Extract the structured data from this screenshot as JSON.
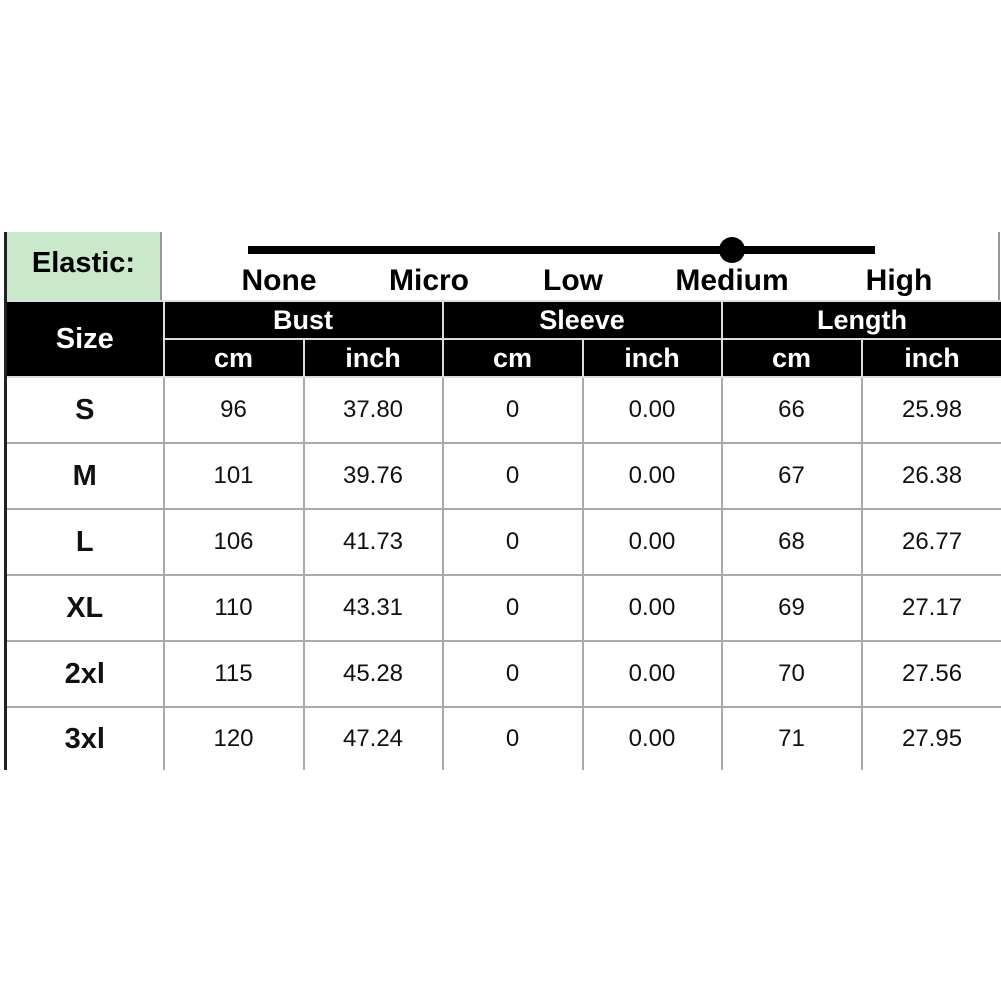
{
  "elastic": {
    "label": "Elastic:",
    "levels": [
      "None",
      "Micro",
      "Low",
      "Medium",
      "High"
    ],
    "selected": "Medium"
  },
  "header": {
    "size": "Size",
    "groups": [
      "Bust",
      "Sleeve",
      "Length"
    ],
    "units": [
      "cm",
      "inch",
      "cm",
      "inch",
      "cm",
      "inch"
    ]
  },
  "rows": [
    [
      "S",
      "96",
      "37.80",
      "0",
      "0.00",
      "66",
      "25.98"
    ],
    [
      "M",
      "101",
      "39.76",
      "0",
      "0.00",
      "67",
      "26.38"
    ],
    [
      "L",
      "106",
      "41.73",
      "0",
      "0.00",
      "68",
      "26.77"
    ],
    [
      "XL",
      "110",
      "43.31",
      "0",
      "0.00",
      "69",
      "27.17"
    ],
    [
      "2xl",
      "115",
      "45.28",
      "0",
      "0.00",
      "70",
      "27.56"
    ],
    [
      "3xl",
      "120",
      "47.24",
      "0",
      "0.00",
      "71",
      "27.95"
    ]
  ],
  "colors": {
    "elastic_bg": "#c9e9ca",
    "header_bg": "#000000"
  }
}
